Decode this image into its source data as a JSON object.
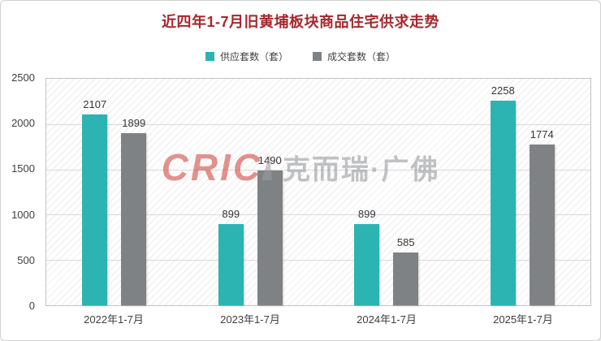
{
  "title": "近四年1-7月旧黄埔板块商品住宅供求走势",
  "legend": [
    {
      "label": "供应套数（套）",
      "color": "#2bb4b2"
    },
    {
      "label": "成交套数（套）",
      "color": "#7f8285"
    }
  ],
  "watermark": {
    "logo": "CRIC",
    "text": "克而瑞·广佛"
  },
  "chart_data": {
    "type": "bar",
    "categories": [
      "2022年1-7月",
      "2023年1-7月",
      "2024年1-7月",
      "2025年1-7月"
    ],
    "series": [
      {
        "name": "供应套数（套）",
        "color": "#2bb4b2",
        "values": [
          2107,
          899,
          899,
          2258
        ]
      },
      {
        "name": "成交套数（套）",
        "color": "#7f8285",
        "values": [
          1899,
          1490,
          585,
          1774
        ]
      }
    ],
    "title": "近四年1-7月旧黄埔板块商品住宅供求走势",
    "xlabel": "",
    "ylabel": "",
    "ylim": [
      0,
      2500
    ],
    "yticks": [
      0,
      500,
      1000,
      1500,
      2000,
      2500
    ],
    "grid": true,
    "legend_position": "top",
    "background_pattern": "diagonal-hatch"
  }
}
